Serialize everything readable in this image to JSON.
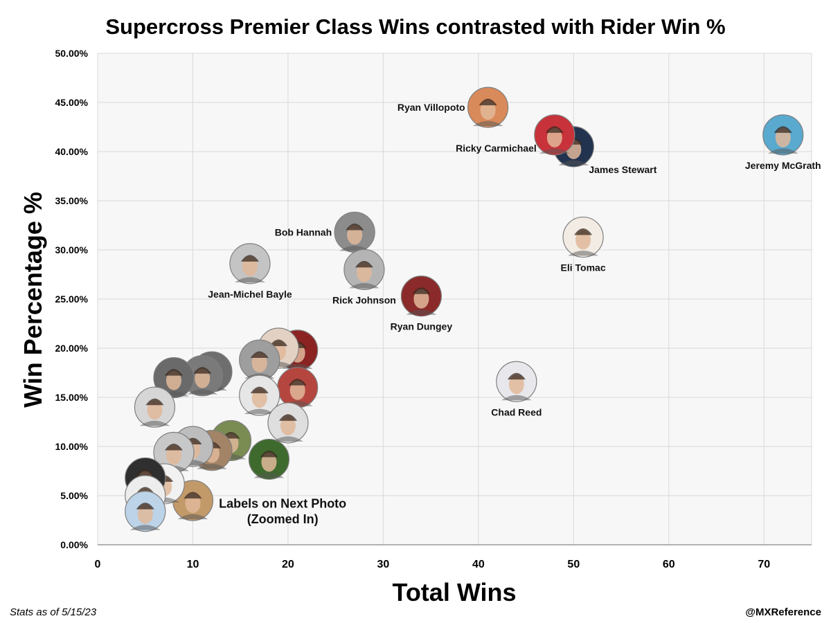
{
  "chart_data": {
    "type": "scatter",
    "title": "Supercross Premier Class Wins contrasted with Rider Win %",
    "xlabel": "Total Wins",
    "ylabel": "Win Percentage %",
    "xlim": [
      0,
      75
    ],
    "ylim": [
      0,
      0.5
    ],
    "x_ticks": [
      "0",
      "10",
      "20",
      "30",
      "40",
      "50",
      "60",
      "70"
    ],
    "y_ticks": [
      "0.00%",
      "5.00%",
      "10.00%",
      "15.00%",
      "20.00%",
      "25.00%",
      "30.00%",
      "35.00%",
      "40.00%",
      "45.00%",
      "50.00%"
    ],
    "grid": true,
    "marker": "rider-photo",
    "points": [
      {
        "label": "Jeremy McGrath",
        "x": 72,
        "y": 0.417,
        "color": "#5aa9cf",
        "label_pos": "below"
      },
      {
        "label": "James Stewart",
        "x": 50,
        "y": 0.405,
        "color": "#22334f",
        "label_pos": "below-right"
      },
      {
        "label": "Ricky Carmichael",
        "x": 48,
        "y": 0.417,
        "color": "#c8323a",
        "label_pos": "below-left"
      },
      {
        "label": "Ryan Villopoto",
        "x": 41,
        "y": 0.445,
        "color": "#d98a5a",
        "label_pos": "left"
      },
      {
        "label": "Eli Tomac",
        "x": 51,
        "y": 0.313,
        "color": "#f2ece4",
        "label_pos": "below"
      },
      {
        "label": "Bob Hannah",
        "x": 27,
        "y": 0.318,
        "color": "#8c8c8c",
        "label_pos": "left"
      },
      {
        "label": "Rick Johnson",
        "x": 28,
        "y": 0.28,
        "color": "#b4b4b4",
        "label_pos": "below"
      },
      {
        "label": "Jean-Michel Bayle",
        "x": 16,
        "y": 0.286,
        "color": "#c4c4c4",
        "label_pos": "below"
      },
      {
        "label": "Ryan Dungey",
        "x": 34,
        "y": 0.253,
        "color": "#8b2a2a",
        "label_pos": "below"
      },
      {
        "label": "Chad Reed",
        "x": 44,
        "y": 0.166,
        "color": "#e7e7ec",
        "label_pos": "below"
      },
      {
        "label": "",
        "x": 21,
        "y": 0.198,
        "color": "#8b2323"
      },
      {
        "label": "",
        "x": 19,
        "y": 0.2,
        "color": "#e3d2c4"
      },
      {
        "label": "",
        "x": 17,
        "y": 0.188,
        "color": "#9e9e9e"
      },
      {
        "label": "",
        "x": 21,
        "y": 0.16,
        "color": "#b5463f"
      },
      {
        "label": "",
        "x": 17,
        "y": 0.152,
        "color": "#e6e6e6"
      },
      {
        "label": "",
        "x": 20,
        "y": 0.124,
        "color": "#dedede"
      },
      {
        "label": "",
        "x": 12,
        "y": 0.176,
        "color": "#6e6e6e"
      },
      {
        "label": "",
        "x": 11,
        "y": 0.172,
        "color": "#7a7a7a"
      },
      {
        "label": "",
        "x": 8,
        "y": 0.17,
        "color": "#6a6a6a"
      },
      {
        "label": "",
        "x": 6,
        "y": 0.14,
        "color": "#d6d6d6"
      },
      {
        "label": "",
        "x": 14,
        "y": 0.106,
        "color": "#7a8c52"
      },
      {
        "label": "",
        "x": 12,
        "y": 0.096,
        "color": "#a38466"
      },
      {
        "label": "",
        "x": 10,
        "y": 0.1,
        "color": "#bdbdbd"
      },
      {
        "label": "",
        "x": 8,
        "y": 0.094,
        "color": "#c8c8c8"
      },
      {
        "label": "",
        "x": 18,
        "y": 0.087,
        "color": "#3f6a2e"
      },
      {
        "label": "",
        "x": 10,
        "y": 0.045,
        "color": "#c29a6a"
      },
      {
        "label": "",
        "x": 7,
        "y": 0.062,
        "color": "#f1f1f1"
      },
      {
        "label": "",
        "x": 5,
        "y": 0.068,
        "color": "#2f2f2f"
      },
      {
        "label": "",
        "x": 5,
        "y": 0.05,
        "color": "#ededed"
      },
      {
        "label": "",
        "x": 5,
        "y": 0.034,
        "color": "#bcd3e8"
      }
    ],
    "annotations": [
      {
        "text": "Labels on Next Photo",
        "x": 19,
        "y": 0.042
      },
      {
        "text": "(Zoomed In)",
        "x": 19,
        "y": 0.026
      }
    ]
  },
  "footer": {
    "left": "Stats as of 5/15/23",
    "right": "@MXReference"
  }
}
